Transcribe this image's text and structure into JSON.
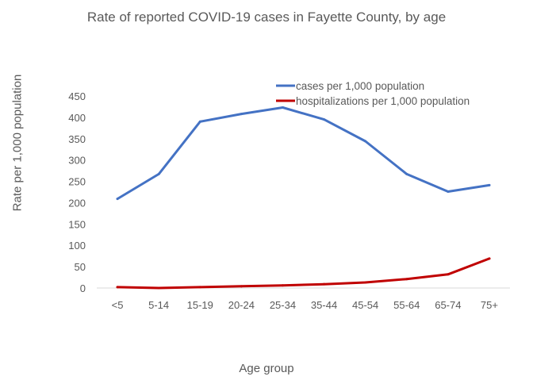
{
  "chart_data": {
    "type": "line",
    "title": "Rate of reported COVID-19 cases in Fayette County, by age",
    "xlabel": "Age group",
    "ylabel": "Rate per 1,000 population",
    "categories": [
      "<5",
      "5-14",
      "15-19",
      "20-24",
      "25-34",
      "35-44",
      "45-54",
      "55-64",
      "65-74",
      "75+"
    ],
    "ylim": [
      0,
      450
    ],
    "yticks": [
      0,
      50,
      100,
      150,
      200,
      250,
      300,
      350,
      400,
      450
    ],
    "grid": false,
    "legend_position": "top-right",
    "series": [
      {
        "name": "cases per 1,000 population",
        "color": "#4472c4",
        "values": [
          209,
          267,
          390,
          408,
          423,
          395,
          344,
          267,
          226,
          241
        ]
      },
      {
        "name": "hospitalizations per 1,000 population",
        "color": "#c00000",
        "values": [
          2,
          0,
          2,
          4,
          6,
          9,
          13,
          21,
          32,
          69
        ]
      }
    ]
  }
}
